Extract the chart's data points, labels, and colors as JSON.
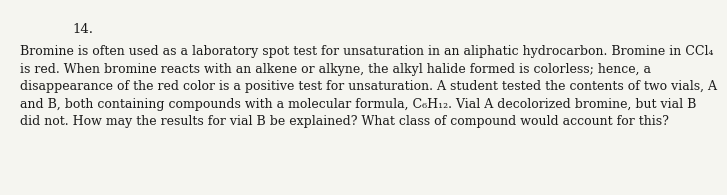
{
  "background_color": "#f5f5f0",
  "number_label": "14.",
  "number_fontsize": 9.5,
  "paragraph_fontsize": 9.0,
  "paragraph_lines": [
    "Bromine is often used as a laboratory spot test for unsaturation in an aliphatic hydrocarbon. Bromine in CCl₄",
    "is red. When bromine reacts with an alkene or alkyne, the alkyl halide formed is colorless; hence, a",
    "disappearance of the red color is a positive test for unsaturation. A student tested the contents of two vials, A",
    "and B, both containing compounds with a molecular formula, C₆H₁₂. Vial A decolorized bromine, but vial B",
    "did not. How may the results for vial B be explained? What class of compound would account for this?"
  ],
  "font_family": "DejaVu Serif",
  "text_color": "#1a1a1a"
}
